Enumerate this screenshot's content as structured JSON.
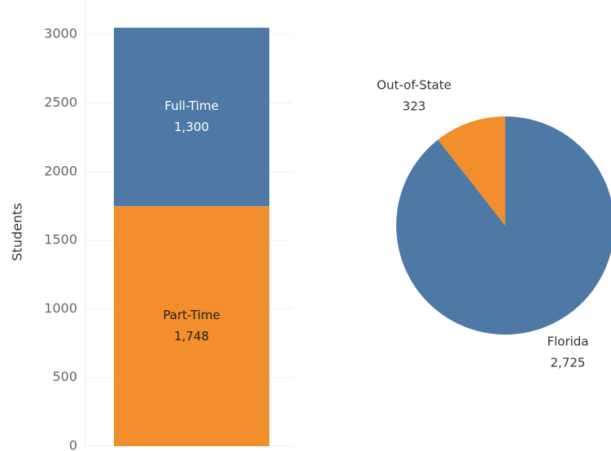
{
  "chart_data": [
    {
      "type": "stacked-bar",
      "y_label": "Students",
      "categories": [
        null
      ],
      "series": [
        {
          "name": "Part-Time",
          "color": "#f28e2b",
          "values": [
            1748
          ],
          "value_labels": [
            "1,748"
          ]
        },
        {
          "name": "Full-Time",
          "color": "#4e79a7",
          "values": [
            1300
          ],
          "value_labels": [
            "1,300"
          ]
        }
      ],
      "ylim": [
        0,
        3250
      ],
      "yticks": [
        0,
        500,
        1000,
        1500,
        2000,
        2500,
        3000
      ],
      "grid": true
    },
    {
      "type": "pie",
      "categories": [
        "Florida",
        "Out-of-State"
      ],
      "values": [
        2725,
        323
      ],
      "value_labels": [
        "2,725",
        "323"
      ],
      "colors": [
        "#4e79a7",
        "#f28e2b"
      ]
    }
  ]
}
